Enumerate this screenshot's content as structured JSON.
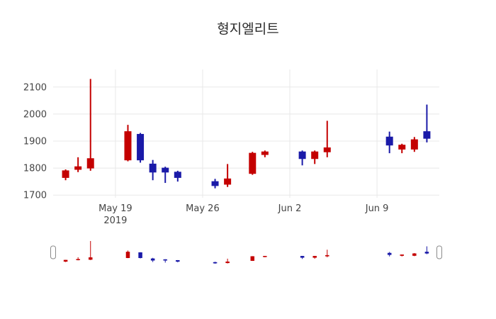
{
  "chart_data": {
    "type": "candlestick",
    "title": "형지엘리트",
    "xrange": [
      "2019-05-14",
      "2019-06-14"
    ],
    "ylim": [
      1690,
      2165
    ],
    "yticks": [
      1700,
      1800,
      1900,
      2000,
      2100
    ],
    "xticks": [
      {
        "date": "2019-05-19",
        "label": "May 19",
        "sublabel": "2019"
      },
      {
        "date": "2019-05-26",
        "label": "May 26"
      },
      {
        "date": "2019-06-02",
        "label": "Jun 2"
      },
      {
        "date": "2019-06-09",
        "label": "Jun 9"
      }
    ],
    "colors": {
      "increasing": "#c40000",
      "decreasing": "#1a1aa8",
      "grid": "#e8e8e8",
      "tick_label": "#444444",
      "title": "#2a2a2a",
      "slider_handle_border": "#8a8a8a"
    },
    "legend": "none",
    "grid": "on",
    "candles": [
      {
        "date": "2019-05-15",
        "open": 1765,
        "high": 1795,
        "low": 1755,
        "close": 1790
      },
      {
        "date": "2019-05-16",
        "open": 1795,
        "high": 1840,
        "low": 1785,
        "close": 1805
      },
      {
        "date": "2019-05-17",
        "open": 1800,
        "high": 2130,
        "low": 1790,
        "close": 1835
      },
      {
        "date": "2019-05-20",
        "open": 1830,
        "high": 1960,
        "low": 1825,
        "close": 1935
      },
      {
        "date": "2019-05-21",
        "open": 1925,
        "high": 1930,
        "low": 1820,
        "close": 1830
      },
      {
        "date": "2019-05-22",
        "open": 1815,
        "high": 1830,
        "low": 1755,
        "close": 1785
      },
      {
        "date": "2019-05-23",
        "open": 1800,
        "high": 1805,
        "low": 1745,
        "close": 1785
      },
      {
        "date": "2019-05-24",
        "open": 1785,
        "high": 1790,
        "low": 1750,
        "close": 1765
      },
      {
        "date": "2019-05-27",
        "open": 1750,
        "high": 1760,
        "low": 1725,
        "close": 1735
      },
      {
        "date": "2019-05-28",
        "open": 1740,
        "high": 1815,
        "low": 1730,
        "close": 1760
      },
      {
        "date": "2019-05-30",
        "open": 1780,
        "high": 1860,
        "low": 1775,
        "close": 1855
      },
      {
        "date": "2019-05-31",
        "open": 1850,
        "high": 1865,
        "low": 1840,
        "close": 1860
      },
      {
        "date": "2019-06-03",
        "open": 1860,
        "high": 1865,
        "low": 1810,
        "close": 1835
      },
      {
        "date": "2019-06-04",
        "open": 1835,
        "high": 1865,
        "low": 1815,
        "close": 1860
      },
      {
        "date": "2019-06-05",
        "open": 1860,
        "high": 1975,
        "low": 1840,
        "close": 1875
      },
      {
        "date": "2019-06-10",
        "open": 1915,
        "high": 1935,
        "low": 1855,
        "close": 1885
      },
      {
        "date": "2019-06-11",
        "open": 1870,
        "high": 1890,
        "low": 1855,
        "close": 1885
      },
      {
        "date": "2019-06-12",
        "open": 1870,
        "high": 1915,
        "low": 1860,
        "close": 1905
      },
      {
        "date": "2019-06-13",
        "open": 1935,
        "high": 2035,
        "low": 1895,
        "close": 1910
      }
    ]
  }
}
